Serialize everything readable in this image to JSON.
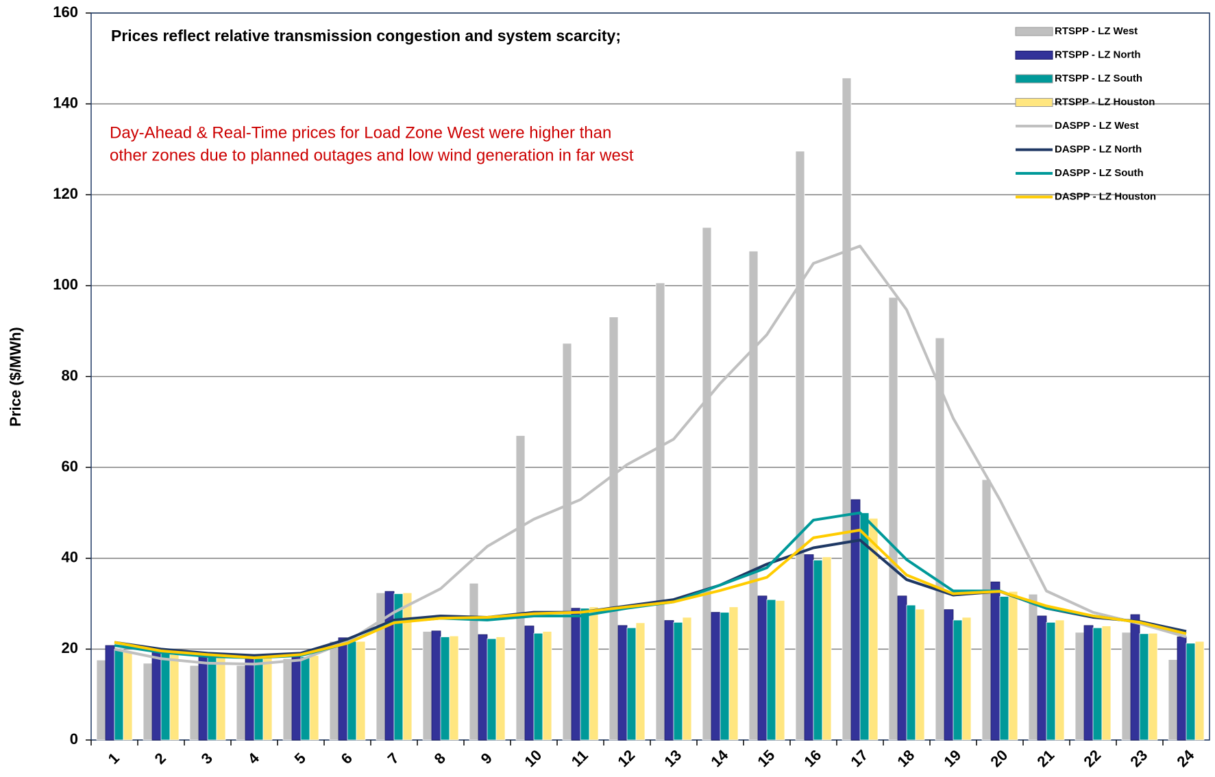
{
  "chart_data": {
    "type": "bar",
    "annotations": [
      "Prices reflect relative transmission congestion and system scarcity;",
      "Day-Ahead & Real-Time prices for Load Zone West were higher than",
      "other zones due to planned outages and low wind generation in far west"
    ],
    "y_label": "Price ($/MWh)",
    "categories": [
      "1",
      "2",
      "3",
      "4",
      "5",
      "6",
      "7",
      "8",
      "9",
      "10",
      "11",
      "12",
      "13",
      "14",
      "15",
      "16",
      "17",
      "18",
      "19",
      "20",
      "21",
      "22",
      "23",
      "24"
    ],
    "ylim": [
      0,
      160
    ],
    "yticks": [
      0,
      20,
      40,
      60,
      80,
      100,
      120,
      140,
      160
    ],
    "grid": true,
    "legend": "top-right",
    "series": [
      {
        "name": "RTSPP - LZ West",
        "type": "bar",
        "color": "#c0c0c0",
        "values": [
          17.6,
          16.9,
          16.4,
          16.4,
          17.9,
          21.7,
          32.4,
          23.9,
          34.5,
          67.0,
          87.3,
          93.1,
          100.6,
          112.8,
          107.6,
          129.6,
          145.7,
          97.4,
          88.5,
          57.3,
          32.1,
          23.7,
          23.7,
          17.7
        ]
      },
      {
        "name": "RTSPP - LZ North",
        "type": "bar",
        "color": "#333399",
        "values": [
          20.8,
          19.6,
          18.8,
          17.9,
          18.3,
          22.5,
          32.7,
          24.0,
          23.2,
          25.1,
          29.0,
          25.2,
          26.3,
          28.1,
          31.7,
          40.8,
          52.9,
          31.7,
          28.7,
          34.8,
          27.3,
          25.2,
          27.6,
          22.7
        ]
      },
      {
        "name": "RTSPP - LZ South",
        "type": "bar",
        "color": "#009999",
        "values": [
          20.0,
          19.1,
          18.6,
          17.9,
          18.3,
          21.7,
          32.2,
          22.7,
          22.3,
          23.5,
          29.0,
          24.7,
          25.9,
          28.1,
          30.9,
          39.6,
          50.0,
          29.7,
          26.4,
          31.6,
          25.9,
          24.7,
          23.4,
          21.3
        ]
      },
      {
        "name": "RTSPP - LZ Houston",
        "type": "bar",
        "color": "#ffe680",
        "values": [
          19.6,
          19.1,
          18.6,
          18.3,
          18.6,
          21.7,
          32.4,
          22.9,
          22.7,
          23.9,
          29.3,
          25.8,
          27.0,
          29.3,
          30.7,
          40.3,
          48.8,
          28.8,
          27.0,
          32.7,
          26.4,
          25.1,
          23.5,
          21.7
        ]
      },
      {
        "name": "DASPP - LZ West",
        "type": "line",
        "color": "#c0c0c0",
        "values": [
          20.0,
          17.9,
          16.9,
          16.7,
          17.6,
          21.7,
          28.1,
          33.3,
          42.6,
          48.6,
          52.9,
          60.6,
          66.2,
          78.5,
          89.2,
          104.9,
          108.7,
          94.7,
          70.8,
          52.9,
          32.8,
          28.1,
          25.6,
          22.7
        ]
      },
      {
        "name": "DASPP - LZ North",
        "type": "line",
        "color": "#1f3864",
        "values": [
          21.5,
          20.0,
          19.1,
          18.6,
          19.1,
          22.2,
          26.4,
          27.3,
          27.0,
          28.1,
          28.1,
          29.5,
          30.9,
          34.1,
          38.7,
          42.3,
          44.0,
          35.3,
          31.9,
          32.7,
          29.0,
          27.0,
          26.1,
          23.9
        ]
      },
      {
        "name": "DASPP - LZ South",
        "type": "line",
        "color": "#009999",
        "values": [
          20.8,
          19.3,
          18.4,
          18.1,
          18.6,
          21.3,
          25.9,
          26.8,
          26.4,
          27.3,
          27.3,
          29.0,
          30.4,
          34.1,
          37.9,
          48.4,
          50.0,
          39.7,
          32.8,
          32.8,
          29.0,
          27.3,
          25.9,
          23.4
        ]
      },
      {
        "name": "DASPP - LZ Houston",
        "type": "line",
        "color": "#ffcc00",
        "values": [
          21.5,
          19.6,
          18.8,
          18.1,
          18.8,
          21.3,
          25.8,
          26.8,
          27.0,
          27.8,
          28.1,
          29.3,
          30.4,
          32.9,
          35.8,
          44.5,
          46.2,
          36.3,
          32.2,
          32.7,
          29.5,
          27.3,
          25.9,
          23.4
        ]
      }
    ]
  }
}
